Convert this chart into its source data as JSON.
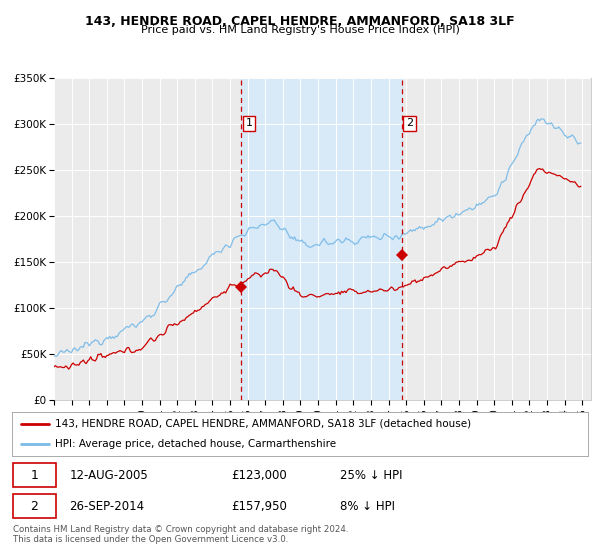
{
  "title": "143, HENDRE ROAD, CAPEL HENDRE, AMMANFORD, SA18 3LF",
  "subtitle": "Price paid vs. HM Land Registry's House Price Index (HPI)",
  "legend_line1": "143, HENDRE ROAD, CAPEL HENDRE, AMMANFORD, SA18 3LF (detached house)",
  "legend_line2": "HPI: Average price, detached house, Carmarthenshire",
  "transaction1_date": "12-AUG-2005",
  "transaction1_price": "£123,000",
  "transaction1_hpi": "25% ↓ HPI",
  "transaction2_date": "26-SEP-2014",
  "transaction2_price": "£157,950",
  "transaction2_hpi": "8% ↓ HPI",
  "footer": "Contains HM Land Registry data © Crown copyright and database right 2024.\nThis data is licensed under the Open Government Licence v3.0.",
  "hpi_color": "#7abbe8",
  "price_color": "#cc0000",
  "background_color": "#ffffff",
  "plot_bg_color": "#ebebeb",
  "shaded_region_color": "#d8eaf8",
  "grid_color": "#ffffff",
  "ylim": [
    0,
    350000
  ],
  "xlim_start": 1995.0,
  "xlim_end": 2025.5,
  "transaction1_x": 2005.617,
  "transaction1_y_price": 123000,
  "transaction2_x": 2014.74,
  "transaction2_y_price": 157950,
  "vline_color": "#cc0000"
}
